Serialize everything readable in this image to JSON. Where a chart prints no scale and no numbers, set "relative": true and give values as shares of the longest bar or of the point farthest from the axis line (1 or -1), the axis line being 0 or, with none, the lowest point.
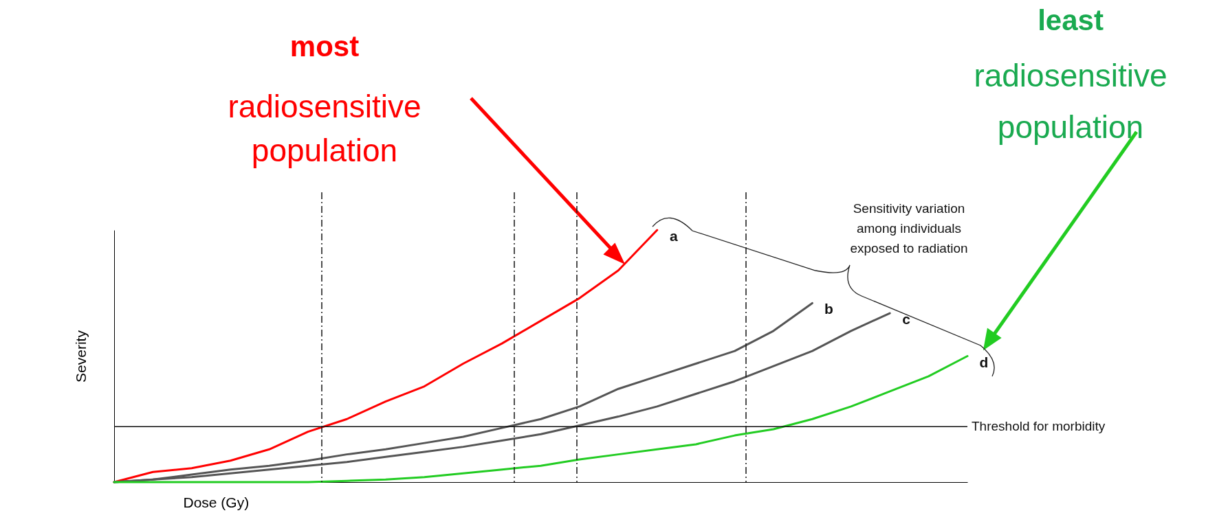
{
  "chart_data": {
    "type": "line",
    "relative": true,
    "xlabel": "Dose (Gy)",
    "ylabel": "Severity",
    "categories": [
      null,
      null,
      null,
      null,
      null,
      null,
      null,
      null,
      null,
      null,
      null,
      null,
      null,
      null,
      null,
      null,
      null,
      null,
      null,
      null,
      null,
      null,
      null
    ],
    "series": [
      {
        "name": "a",
        "color": "#ff0000",
        "values": [
          0,
          0.04,
          0.055,
          0.085,
          0.13,
          0.2,
          0.25,
          0.32,
          0.38,
          0.47,
          0.55,
          0.64,
          0.73,
          0.84,
          1,
          null,
          null,
          null,
          null,
          null,
          null,
          null,
          null
        ]
      },
      {
        "name": "b",
        "color": "#555555",
        "values": [
          0,
          0.01,
          0.03,
          0.05,
          0.065,
          0.085,
          0.11,
          0.13,
          0.155,
          0.18,
          0.215,
          0.25,
          0.3,
          0.37,
          0.42,
          0.47,
          0.52,
          0.6,
          0.71,
          null,
          null,
          null,
          null
        ]
      },
      {
        "name": "c",
        "color": "#555555",
        "values": [
          0,
          0.01,
          0.02,
          0.035,
          0.05,
          0.065,
          0.08,
          0.1,
          0.12,
          0.14,
          0.165,
          0.19,
          0.225,
          0.26,
          0.3,
          0.35,
          0.4,
          0.46,
          0.52,
          0.6,
          0.67,
          null,
          null
        ]
      },
      {
        "name": "d",
        "color": "#22cc22",
        "values": [
          0,
          0,
          0,
          0,
          0,
          0,
          0.005,
          0.01,
          0.02,
          0.035,
          0.05,
          0.065,
          0.09,
          0.11,
          0.13,
          0.15,
          0.185,
          0.21,
          0.25,
          0.3,
          0.36,
          0.42,
          0.5
        ]
      }
    ],
    "ref_lines": [
      {
        "axis": "y",
        "value": 0.22,
        "label": "Threshold for morbidity"
      }
    ],
    "annotations": [
      "most",
      "radiosensitive population",
      "least",
      "radiosensitive population",
      "Sensitivity variation among individuals exposed to radiation"
    ]
  }
}
